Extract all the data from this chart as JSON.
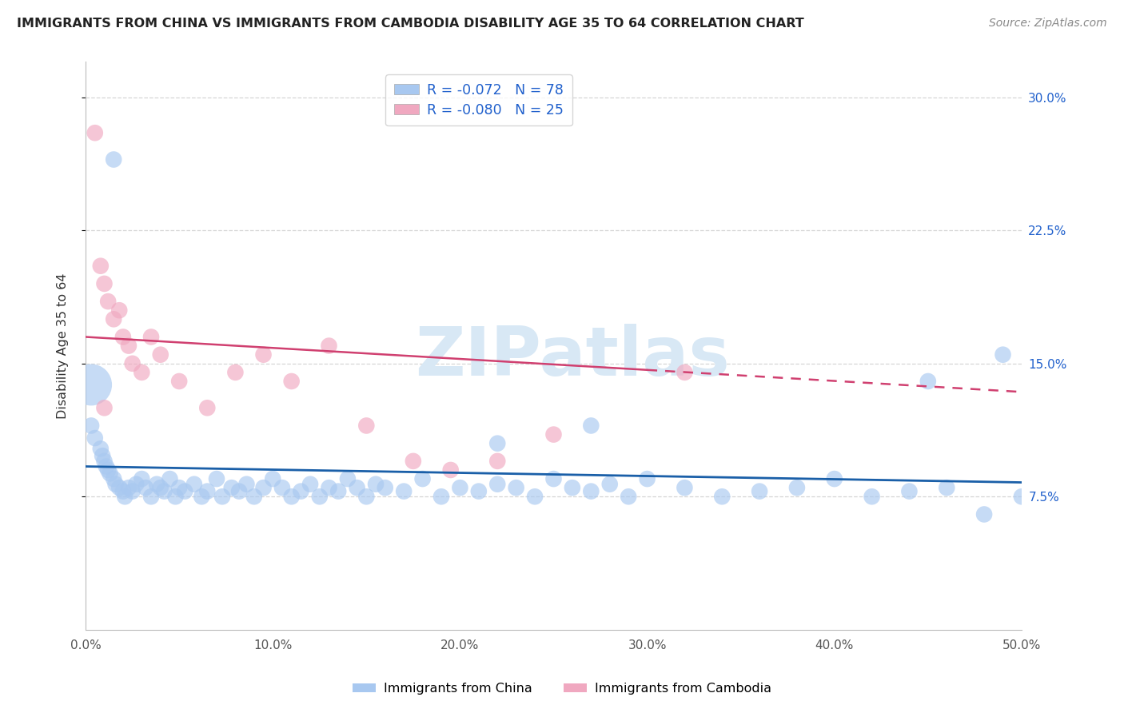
{
  "title": "IMMIGRANTS FROM CHINA VS IMMIGRANTS FROM CAMBODIA DISABILITY AGE 35 TO 64 CORRELATION CHART",
  "source": "Source: ZipAtlas.com",
  "ylabel": "Disability Age 35 to 64",
  "xlim": [
    0.0,
    50.0
  ],
  "ylim": [
    0.0,
    32.0
  ],
  "xtick_vals": [
    0.0,
    10.0,
    20.0,
    30.0,
    40.0,
    50.0
  ],
  "xtick_labels": [
    "0.0%",
    "10.0%",
    "20.0%",
    "30.0%",
    "40.0%",
    "50.0%"
  ],
  "ytick_vals": [
    7.5,
    15.0,
    22.5,
    30.0
  ],
  "ytick_labels": [
    "7.5%",
    "15.0%",
    "22.5%",
    "30.0%"
  ],
  "watermark": "ZIPatlas",
  "legend_blue_r": "R = -0.072",
  "legend_blue_n": "N = 78",
  "legend_pink_r": "R = -0.080",
  "legend_pink_n": "N = 25",
  "blue_scatter_color": "#a8c8f0",
  "pink_scatter_color": "#f0a8c0",
  "blue_line_color": "#1a5fa8",
  "pink_line_color": "#d04070",
  "legend_text_color": "#2060cc",
  "grid_color": "#cccccc",
  "title_color": "#222222",
  "source_color": "#888888",
  "watermark_color": "#d8e8f5",
  "blue_line_intercept": 9.2,
  "blue_line_slope": -0.018,
  "pink_line_intercept": 16.5,
  "pink_line_slope": -0.062,
  "pink_solid_end": 30.0,
  "china_x": [
    0.3,
    0.5,
    0.8,
    0.9,
    1.0,
    1.1,
    1.2,
    1.3,
    1.5,
    1.6,
    1.8,
    2.0,
    2.1,
    2.3,
    2.5,
    2.7,
    3.0,
    3.2,
    3.5,
    3.8,
    4.0,
    4.2,
    4.5,
    4.8,
    5.0,
    5.3,
    5.8,
    6.2,
    6.5,
    7.0,
    7.3,
    7.8,
    8.2,
    8.6,
    9.0,
    9.5,
    10.0,
    10.5,
    11.0,
    11.5,
    12.0,
    12.5,
    13.0,
    13.5,
    14.0,
    14.5,
    15.0,
    15.5,
    16.0,
    17.0,
    18.0,
    19.0,
    20.0,
    21.0,
    22.0,
    23.0,
    24.0,
    25.0,
    26.0,
    27.0,
    28.0,
    29.0,
    30.0,
    32.0,
    34.0,
    36.0,
    38.0,
    40.0,
    42.0,
    44.0,
    46.0,
    48.0,
    50.0,
    22.0,
    27.0,
    45.0,
    49.0,
    1.5
  ],
  "china_y": [
    11.5,
    10.8,
    10.2,
    9.8,
    9.5,
    9.2,
    9.0,
    8.8,
    8.5,
    8.2,
    8.0,
    7.8,
    7.5,
    8.0,
    7.8,
    8.2,
    8.5,
    8.0,
    7.5,
    8.2,
    8.0,
    7.8,
    8.5,
    7.5,
    8.0,
    7.8,
    8.2,
    7.5,
    7.8,
    8.5,
    7.5,
    8.0,
    7.8,
    8.2,
    7.5,
    8.0,
    8.5,
    8.0,
    7.5,
    7.8,
    8.2,
    7.5,
    8.0,
    7.8,
    8.5,
    8.0,
    7.5,
    8.2,
    8.0,
    7.8,
    8.5,
    7.5,
    8.0,
    7.8,
    8.2,
    8.0,
    7.5,
    8.5,
    8.0,
    7.8,
    8.2,
    7.5,
    8.5,
    8.0,
    7.5,
    7.8,
    8.0,
    8.5,
    7.5,
    7.8,
    8.0,
    6.5,
    7.5,
    10.5,
    11.5,
    14.0,
    15.5,
    26.5
  ],
  "china_large_x": [
    0.3
  ],
  "china_large_y": [
    13.8
  ],
  "china_large_s": 1400,
  "cambodia_x": [
    0.5,
    0.8,
    1.0,
    1.2,
    1.5,
    1.8,
    2.0,
    2.3,
    2.5,
    3.0,
    3.5,
    4.0,
    5.0,
    6.5,
    8.0,
    9.5,
    11.0,
    13.0,
    15.0,
    17.5,
    19.5,
    22.0,
    25.0,
    32.0,
    1.0
  ],
  "cambodia_y": [
    28.0,
    20.5,
    19.5,
    18.5,
    17.5,
    18.0,
    16.5,
    16.0,
    15.0,
    14.5,
    16.5,
    15.5,
    14.0,
    12.5,
    14.5,
    15.5,
    14.0,
    16.0,
    11.5,
    9.5,
    9.0,
    9.5,
    11.0,
    14.5,
    12.5
  ],
  "scatter_size": 220,
  "scatter_alpha": 0.65
}
